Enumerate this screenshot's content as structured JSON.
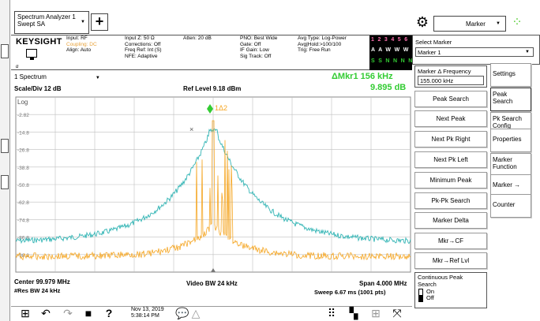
{
  "app": {
    "mode_line1": "Spectrum Analyzer 1",
    "mode_line2": "Swept SA",
    "plus_label": "+",
    "marker_dropdown": "Marker"
  },
  "info": {
    "logo": "KEYSIGHT",
    "logo_sub": "ɑ",
    "col1": [
      "Input: RF",
      "Coupling: DC",
      "Align: Auto"
    ],
    "col2": [
      "Input Z: 50 Ω",
      "Corrections: Off",
      "Freq Ref: Int (S)",
      "NFE: Adaptive"
    ],
    "col3": [
      "Atten: 20 dB"
    ],
    "col4": [
      "PNO: Best Wide",
      "Gate: Off",
      "IF Gain: Low",
      "Sig Track: Off"
    ],
    "col5": [
      "Avg Type: Log-Power",
      "Avg|Hold:>100/100",
      "Trig: Free Run"
    ],
    "trace_row1": "1 2 3 4 5 6",
    "trace_row2": "A A W W W W",
    "trace_row3": "S S N N N N"
  },
  "select_marker": {
    "label": "Select Marker",
    "value": "Marker 1"
  },
  "spectrum": {
    "tab": "1 Spectrum",
    "scale": "Scale/Div 12 dB",
    "ref_level": "Ref Level 9.18 dBm",
    "log_label": "Log",
    "marker_readout_freq": "ΔMkr1  156 kHz",
    "marker_readout_amp": "9.895 dB",
    "y_ticks": [
      "-2.82",
      "-14.8",
      "-26.8",
      "-38.8",
      "-50.8",
      "-62.8",
      "-74.8",
      "-86.8",
      "-98.8"
    ],
    "marker_label": "1Δ2"
  },
  "bottom": {
    "center": "Center 99.979 MHz",
    "res_bw": "#Res BW 24 kHz",
    "video_bw": "Video BW 24 kHz",
    "span": "Span 4.000 MHz",
    "sweep": "Sweep 6.67 ms (1001 pts)"
  },
  "softkeys": {
    "header_label": "Marker Δ Frequency",
    "header_value": "155.000 kHz",
    "items": [
      "Peak Search",
      "Next Peak",
      "Next Pk Right",
      "Next Pk Left",
      "Minimum Peak",
      "Pk-Pk Search",
      "Marker Delta",
      "Mkr→CF",
      "Mkr→Ref Lvl"
    ],
    "cont_peak_label1": "Continuous Peak",
    "cont_peak_label2": "Search",
    "cont_on": "On",
    "cont_off": "Off"
  },
  "side_tabs": [
    {
      "line1": "Settings",
      "line2": ""
    },
    {
      "line1": "Peak",
      "line2": "Search"
    },
    {
      "line1": "Pk Search",
      "line2": "Config"
    },
    {
      "line1": "Properties",
      "line2": ""
    },
    {
      "line1": "Marker",
      "line2": "Function"
    },
    {
      "line1": "Marker →",
      "line2": ""
    },
    {
      "line1": "Counter",
      "line2": ""
    }
  ],
  "taskbar": {
    "date": "Nov 13, 2019",
    "time": "5:38:14 PM",
    "help": "?"
  },
  "colors": {
    "trace_cyan": "#33b5b5",
    "trace_orange": "#f5a623",
    "marker_green": "#33cc33",
    "grid": "#bfbfbf"
  }
}
